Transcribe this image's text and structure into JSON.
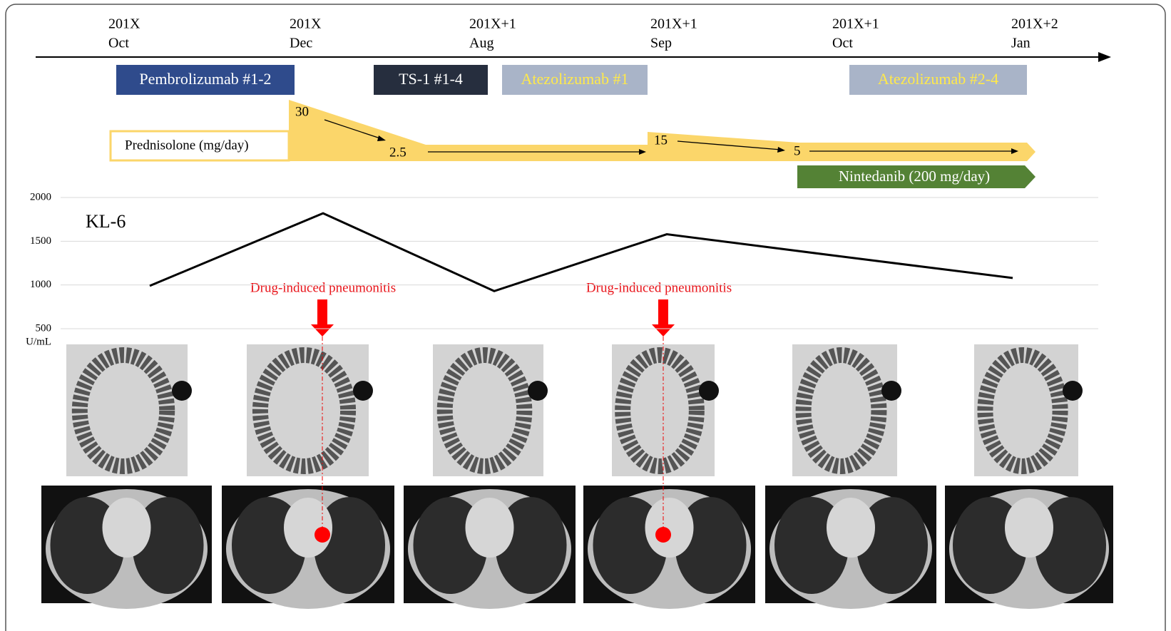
{
  "timeline": [
    {
      "year": "201X",
      "month": "Oct"
    },
    {
      "year": "201X",
      "month": "Dec"
    },
    {
      "year": "201X+1",
      "month": "Aug"
    },
    {
      "year": "201X+1",
      "month": "Sep"
    },
    {
      "year": "201X+1",
      "month": "Oct"
    },
    {
      "year": "201X+2",
      "month": "Jan"
    }
  ],
  "treatments": [
    {
      "label": "Pembrolizumab  #1-2",
      "color": "#2f4b8c",
      "text_color": "#ffffff"
    },
    {
      "label": "TS-1  #1-4",
      "color": "#262e3e",
      "text_color": "#ffffff"
    },
    {
      "label": "Atezolizumab  #1",
      "color": "#a9b4c8",
      "text_color": "#ffe94a"
    },
    {
      "label": "Atezolizumab  #2-4",
      "color": "#a9b4c8",
      "text_color": "#ffe94a"
    }
  ],
  "prednisolone": {
    "label": "Prednisolone (mg/day)",
    "doses": [
      "30",
      "2.5",
      "15",
      "5"
    ],
    "color": "#fbd66a"
  },
  "nintedanib": {
    "label": "Nintedanib  (200 mg/day)",
    "color": "#548235"
  },
  "annotations": [
    "Drug-induced pneumonitis",
    "Drug-induced pneumonitis"
  ],
  "chart_data": {
    "type": "line",
    "y_label": "U/mL",
    "ylim": [
      500,
      2000
    ],
    "yticks": [
      500,
      1000,
      1500,
      2000
    ],
    "grid": true,
    "series": [
      {
        "name": "KL-6",
        "color": "#000000",
        "values": [
          990,
          1820,
          930,
          1580,
          1320,
          1080
        ]
      }
    ]
  }
}
